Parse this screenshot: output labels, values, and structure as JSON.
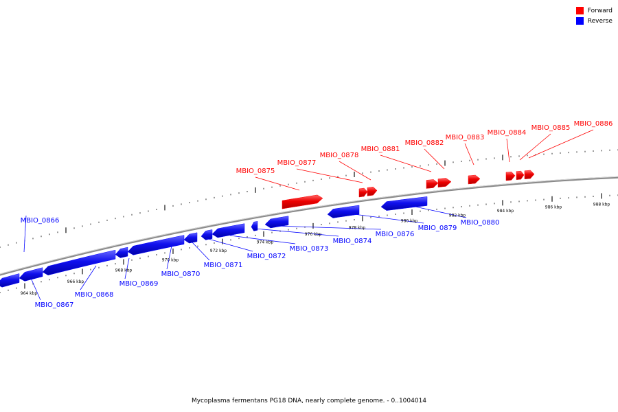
{
  "legend": {
    "forward": {
      "label": "Forward",
      "color": "#ff0000"
    },
    "reverse": {
      "label": "Reverse",
      "color": "#0000ff"
    }
  },
  "caption": "Mycoplasma fermentans PG18 DNA, nearly complete genome. - 0..1004014",
  "axis": {
    "unit": "kbp",
    "ticks": [
      "964 kbp",
      "966 kbp",
      "968 kbp",
      "970 kbp",
      "972 kbp",
      "974 kbp",
      "976 kbp",
      "978 kbp",
      "980 kbp",
      "982 kbp",
      "984 kbp",
      "986 kbp",
      "988 kbp"
    ]
  },
  "genes": [
    {
      "label": "MBIO_0866",
      "strand": "reverse"
    },
    {
      "label": "MBIO_0867",
      "strand": "reverse"
    },
    {
      "label": "MBIO_0868",
      "strand": "reverse"
    },
    {
      "label": "MBIO_0869",
      "strand": "reverse"
    },
    {
      "label": "MBIO_0870",
      "strand": "reverse"
    },
    {
      "label": "MBIO_0871",
      "strand": "reverse"
    },
    {
      "label": "MBIO_0872",
      "strand": "reverse"
    },
    {
      "label": "MBIO_0873",
      "strand": "reverse"
    },
    {
      "label": "MBIO_0874",
      "strand": "reverse"
    },
    {
      "label": "MBIO_0876",
      "strand": "reverse"
    },
    {
      "label": "MBIO_0879",
      "strand": "reverse"
    },
    {
      "label": "MBIO_0880",
      "strand": "reverse"
    },
    {
      "label": "MBIO_0875",
      "strand": "forward"
    },
    {
      "label": "MBIO_0877",
      "strand": "forward"
    },
    {
      "label": "MBIO_0878",
      "strand": "forward"
    },
    {
      "label": "MBIO_0881",
      "strand": "forward"
    },
    {
      "label": "MBIO_0882",
      "strand": "forward"
    },
    {
      "label": "MBIO_0883",
      "strand": "forward"
    },
    {
      "label": "MBIO_0884",
      "strand": "forward"
    },
    {
      "label": "MBIO_0885",
      "strand": "forward"
    },
    {
      "label": "MBIO_0886",
      "strand": "forward"
    }
  ]
}
